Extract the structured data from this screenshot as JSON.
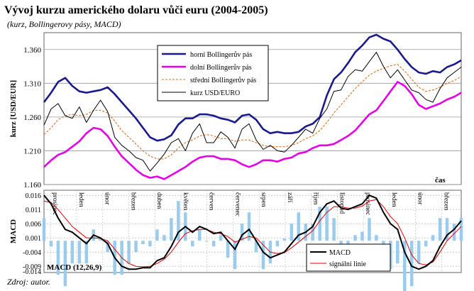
{
  "title": "Vývoj kurzu amerického dolaru vůči euru (2004-2005)",
  "subtitle": "(kurz, Bollingerovy pásy, MACD)",
  "source": "Zdroj: autor.",
  "colors": {
    "upper": "#1a1a8c",
    "lower": "#e600e6",
    "middle": "#e07020",
    "price": "#000000",
    "macd": "#000000",
    "signal": "#e00000",
    "histogram": "#99ccee"
  },
  "chart_data": [
    {
      "type": "line",
      "ylabel": "kurz [USD/EUR]",
      "xlabel": "čas",
      "ylim": [
        1.16,
        1.385
      ],
      "yticks": [
        "1.360",
        "1.310",
        "1.260",
        "1.210",
        "1.160"
      ],
      "grid": true,
      "legend_position": "top-center",
      "x": [
        0,
        10,
        20,
        30,
        40,
        50,
        60,
        70,
        80,
        90,
        100,
        110,
        120,
        130,
        140,
        150,
        160,
        170,
        180,
        190,
        200,
        210,
        220,
        230,
        240,
        250,
        260,
        270,
        280,
        290,
        300,
        310,
        320,
        330,
        340,
        350,
        360,
        370,
        380,
        390,
        400,
        410,
        420,
        430,
        440,
        450,
        460,
        470,
        480,
        490,
        500,
        510,
        520,
        530,
        540,
        550,
        560,
        570,
        580,
        590
      ],
      "series": [
        {
          "name": "horní Bollingerův pás",
          "values": [
            1.282,
            1.296,
            1.312,
            1.318,
            1.306,
            1.298,
            1.296,
            1.298,
            1.3,
            1.304,
            1.294,
            1.282,
            1.27,
            1.258,
            1.244,
            1.23,
            1.225,
            1.227,
            1.233,
            1.249,
            1.258,
            1.258,
            1.264,
            1.264,
            1.262,
            1.258,
            1.256,
            1.252,
            1.262,
            1.264,
            1.256,
            1.242,
            1.236,
            1.238,
            1.236,
            1.236,
            1.238,
            1.246,
            1.25,
            1.26,
            1.292,
            1.316,
            1.326,
            1.34,
            1.356,
            1.366,
            1.378,
            1.382,
            1.376,
            1.372,
            1.36,
            1.346,
            1.334,
            1.326,
            1.324,
            1.328,
            1.326,
            1.334,
            1.338,
            1.344
          ]
        },
        {
          "name": "dolní Bollingerův pás",
          "values": [
            1.186,
            1.196,
            1.204,
            1.208,
            1.216,
            1.224,
            1.236,
            1.244,
            1.242,
            1.232,
            1.216,
            1.202,
            1.192,
            1.182,
            1.174,
            1.17,
            1.172,
            1.168,
            1.174,
            1.18,
            1.186,
            1.194,
            1.2,
            1.202,
            1.202,
            1.198,
            1.198,
            1.196,
            1.19,
            1.186,
            1.19,
            1.196,
            1.196,
            1.194,
            1.198,
            1.2,
            1.206,
            1.208,
            1.214,
            1.218,
            1.218,
            1.22,
            1.226,
            1.232,
            1.24,
            1.252,
            1.264,
            1.27,
            1.284,
            1.298,
            1.312,
            1.306,
            1.294,
            1.278,
            1.272,
            1.276,
            1.28,
            1.286,
            1.29,
            1.296
          ]
        },
        {
          "name": "střední Bollingerův pás",
          "values": [
            1.234,
            1.244,
            1.256,
            1.262,
            1.264,
            1.262,
            1.264,
            1.27,
            1.27,
            1.266,
            1.254,
            1.24,
            1.23,
            1.22,
            1.21,
            1.202,
            1.198,
            1.198,
            1.204,
            1.214,
            1.222,
            1.226,
            1.232,
            1.234,
            1.232,
            1.228,
            1.228,
            1.224,
            1.226,
            1.226,
            1.222,
            1.218,
            1.216,
            1.216,
            1.216,
            1.218,
            1.222,
            1.228,
            1.232,
            1.24,
            1.252,
            1.266,
            1.278,
            1.29,
            1.302,
            1.312,
            1.322,
            1.328,
            1.332,
            1.336,
            1.338,
            1.328,
            1.316,
            1.304,
            1.298,
            1.3,
            1.304,
            1.31,
            1.314,
            1.32
          ]
        },
        {
          "name": "kurz USD/EURO",
          "values": [
            1.248,
            1.272,
            1.28,
            1.262,
            1.258,
            1.275,
            1.252,
            1.27,
            1.285,
            1.268,
            1.23,
            1.218,
            1.21,
            1.2,
            1.196,
            1.18,
            1.192,
            1.205,
            1.222,
            1.228,
            1.21,
            1.236,
            1.25,
            1.222,
            1.222,
            1.238,
            1.23,
            1.214,
            1.242,
            1.25,
            1.226,
            1.212,
            1.218,
            1.21,
            1.208,
            1.218,
            1.23,
            1.242,
            1.236,
            1.258,
            1.272,
            1.298,
            1.3,
            1.32,
            1.33,
            1.328,
            1.342,
            1.356,
            1.335,
            1.318,
            1.33,
            1.315,
            1.3,
            1.296,
            1.286,
            1.282,
            1.302,
            1.318,
            1.326,
            1.334
          ]
        }
      ]
    },
    {
      "type": "line",
      "ylabel": "MACD",
      "ylim": [
        -0.0112,
        0.0178
      ],
      "yticks": [
        "0.016",
        "0.011",
        "0.006",
        "0.001",
        "-0.004",
        "-0.009",
        "-0.014"
      ],
      "grid": true,
      "annotation": "MACD (12,26,9)",
      "legend_position": "bottom-right",
      "month_labels": [
        "prosinec",
        "leden",
        "únor",
        "březen",
        "duben",
        "květen",
        "červen",
        "červenec",
        "srpen",
        "září",
        "říjen",
        "listopad",
        "prosinec",
        "leden",
        "únor",
        "březen"
      ],
      "x": [
        0,
        10,
        20,
        30,
        40,
        50,
        60,
        70,
        80,
        90,
        100,
        110,
        120,
        130,
        140,
        150,
        160,
        170,
        180,
        190,
        200,
        210,
        220,
        230,
        240,
        250,
        260,
        270,
        280,
        290,
        300,
        310,
        320,
        330,
        340,
        350,
        360,
        370,
        380,
        390,
        400,
        410,
        420,
        430,
        440,
        450,
        460,
        470,
        480,
        490,
        500,
        510,
        520,
        530,
        540,
        550,
        560,
        570,
        580,
        590
      ],
      "series": [
        {
          "name": "MACD",
          "values": [
            0.016,
            0.013,
            0.008,
            0.004,
            0.003,
            0.001,
            -0.001,
            0.002,
            0.001,
            -0.001,
            -0.006,
            -0.009,
            -0.01,
            -0.01,
            -0.0095,
            -0.0095,
            -0.007,
            -0.006,
            -0.002,
            0.003,
            0.005,
            0.003,
            0.005,
            0.004,
            0.0025,
            0.003,
            0.0,
            -0.003,
            0.002,
            0.004,
            0.0,
            -0.004,
            -0.006,
            -0.005,
            -0.004,
            -0.001,
            0.002,
            0.003,
            0.005,
            0.01,
            0.013,
            0.014,
            0.0115,
            0.011,
            0.012,
            0.013,
            0.016,
            0.015,
            0.01,
            0.006,
            0.004,
            -0.004,
            -0.009,
            -0.01,
            -0.009,
            -0.007,
            -0.002,
            0.002,
            0.004,
            0.007
          ]
        },
        {
          "name": "signální linie",
          "values": [
            0.014,
            0.0135,
            0.011,
            0.008,
            0.005,
            0.003,
            0.001,
            0.001,
            0.0008,
            0.0,
            -0.003,
            -0.006,
            -0.008,
            -0.009,
            -0.0092,
            -0.009,
            -0.008,
            -0.0065,
            -0.004,
            -0.0005,
            0.0025,
            0.0035,
            0.004,
            0.004,
            0.003,
            0.0025,
            0.0015,
            -0.0005,
            0.0005,
            0.0015,
            0.001,
            -0.0015,
            -0.004,
            -0.0045,
            -0.0042,
            -0.0025,
            -0.0005,
            0.0015,
            0.0035,
            0.007,
            0.01,
            0.012,
            0.012,
            0.0115,
            0.0115,
            0.0122,
            0.014,
            0.0145,
            0.012,
            0.0085,
            0.006,
            0.001,
            -0.005,
            -0.008,
            -0.0085,
            -0.0075,
            -0.004,
            0.0,
            0.0025,
            0.005
          ]
        }
      ]
    }
  ]
}
